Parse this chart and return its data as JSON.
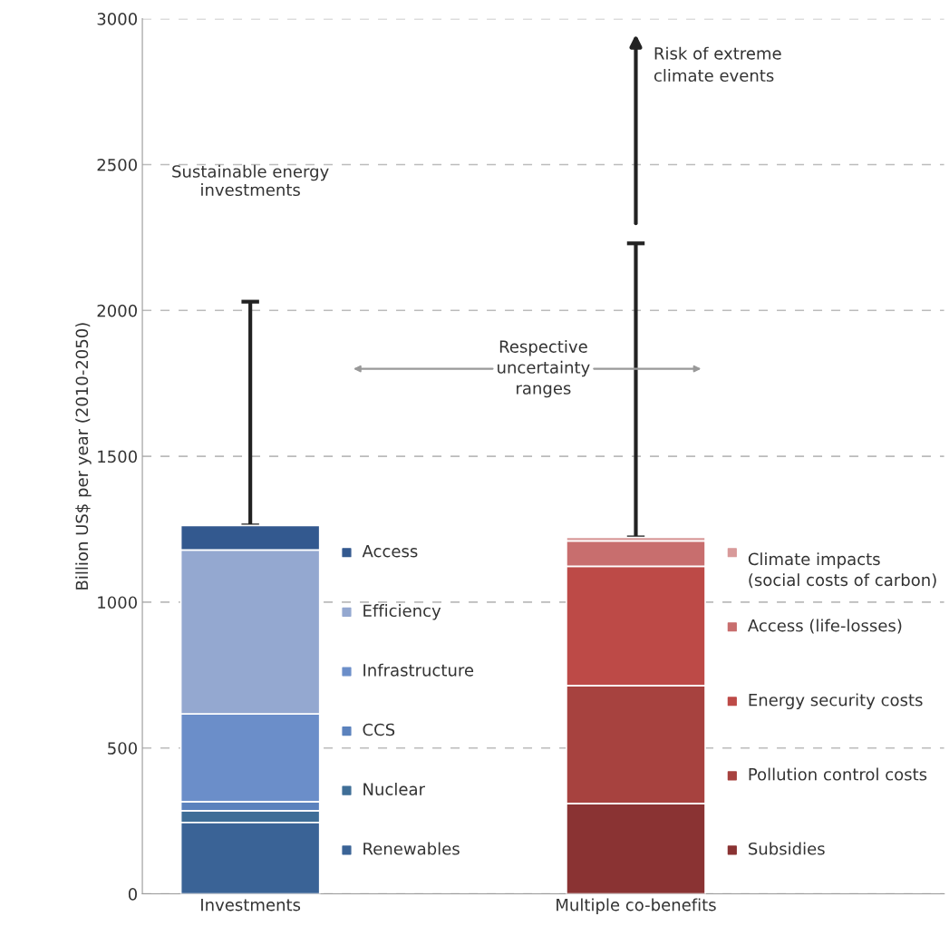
{
  "chart_data": {
    "type": "bar",
    "stacked": true,
    "categories": [
      "Investments",
      "Multiple co-benefits"
    ],
    "ylabel": "Billion US$ per year (2010-2050)",
    "ylim": [
      0,
      3000
    ],
    "yticks": [
      0,
      500,
      1000,
      1500,
      2000,
      2500,
      3000
    ],
    "grid": "y",
    "legend": "right",
    "series": [
      {
        "name": "Renewables",
        "color": "#3a6396",
        "values": [
          245,
          null
        ]
      },
      {
        "name": "Nuclear",
        "color": "#3f6e97",
        "values": [
          40,
          null
        ]
      },
      {
        "name": "CCS",
        "color": "#5b82bd",
        "values": [
          31,
          null
        ]
      },
      {
        "name": "Infrastructure",
        "color": "#6b8ec9",
        "values": [
          301,
          null
        ]
      },
      {
        "name": "Efficiency",
        "color": "#94a8d0",
        "values": [
          562,
          null
        ]
      },
      {
        "name": "Access",
        "color": "#33598f",
        "values": [
          84,
          null
        ],
        "errors": [
          [
            1263,
            2030
          ],
          null
        ]
      },
      {
        "name": "Subsidies",
        "color": "#8a3333",
        "values": [
          null,
          310
        ]
      },
      {
        "name": "Pollution control costs",
        "color": "#a7423f",
        "values": [
          null,
          404
        ]
      },
      {
        "name": "Energy security costs",
        "color": "#bd4a47",
        "values": [
          null,
          409
        ]
      },
      {
        "name": "Access (life-losses)",
        "color": "#c86e6e",
        "values": [
          null,
          87
        ]
      },
      {
        "name": "Climate impacts\n(social costs of carbon)",
        "color": "#d89a9a",
        "values": [
          null,
          12
        ],
        "errors": [
          null,
          [
            1222,
            2230
          ]
        ]
      }
    ],
    "annotations": [
      "Sustainable energy\ninvestments",
      "Respective\nuncertainty\nranges",
      "Risk of extreme\nclimate events"
    ]
  }
}
